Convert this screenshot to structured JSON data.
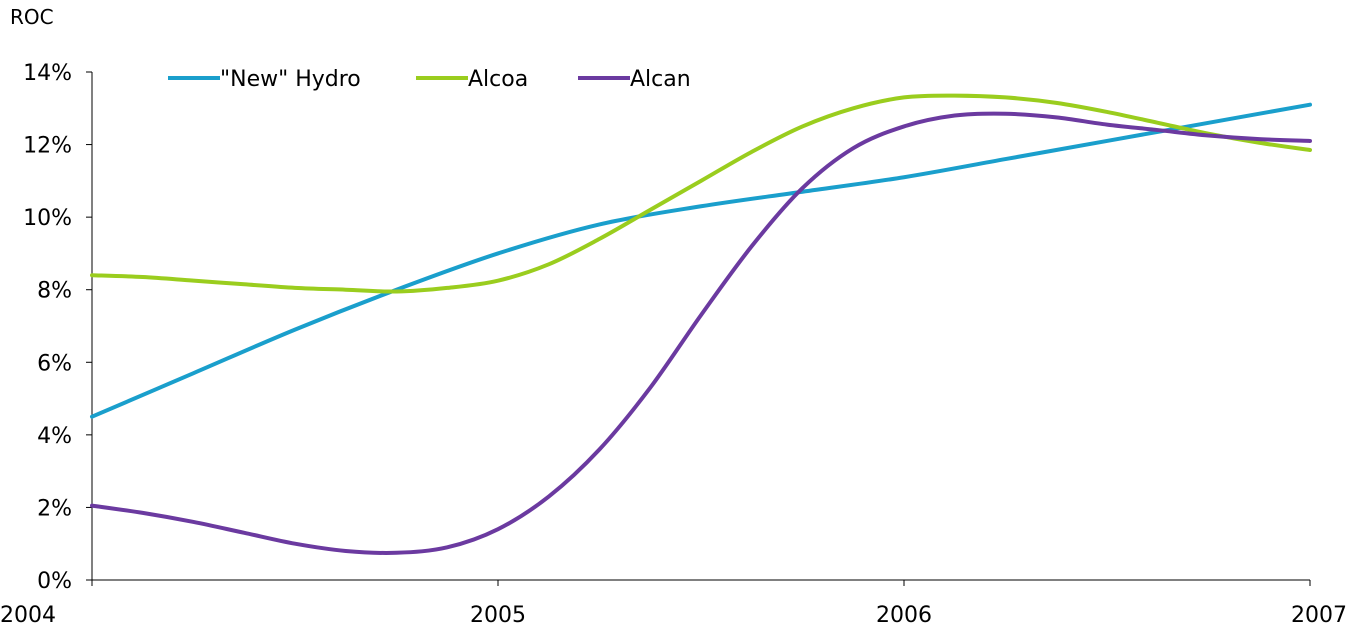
{
  "chart_data": {
    "type": "line",
    "title": "",
    "xlabel": "",
    "ylabel": "ROC",
    "xlim": [
      2004,
      2007
    ],
    "ylim": [
      0,
      14
    ],
    "x_ticks": [
      2004,
      2005,
      2006,
      2007
    ],
    "x_tick_labels": [
      "2004",
      "2005",
      "2006",
      "2007"
    ],
    "y_ticks": [
      0,
      2,
      4,
      6,
      8,
      10,
      12,
      14
    ],
    "y_tick_labels": [
      "0%",
      "2%",
      "4%",
      "6%",
      "8%",
      "10%",
      "12%",
      "14%"
    ],
    "grid": false,
    "legend_position": "top",
    "series": [
      {
        "name": "\"New\" Hydro",
        "color": "#1a9fcc",
        "x": [
          2004.0,
          2004.25,
          2004.5,
          2004.75,
          2005.0,
          2005.25,
          2005.5,
          2005.75,
          2006.0,
          2006.25,
          2006.5,
          2006.75,
          2007.0
        ],
        "values": [
          4.5,
          5.7,
          6.9,
          8.0,
          9.0,
          9.8,
          10.3,
          10.7,
          11.1,
          11.6,
          12.1,
          12.6,
          13.1
        ]
      },
      {
        "name": "Alcoa",
        "color": "#9acd1e",
        "x": [
          2004.0,
          2004.125,
          2004.25,
          2004.375,
          2004.5,
          2004.625,
          2004.75,
          2004.875,
          2005.0,
          2005.125,
          2005.25,
          2005.375,
          2005.5,
          2005.625,
          2005.75,
          2005.875,
          2006.0,
          2006.125,
          2006.25,
          2006.375,
          2006.5,
          2006.625,
          2006.75,
          2006.875,
          2007.0
        ],
        "values": [
          8.4,
          8.35,
          8.25,
          8.15,
          8.05,
          8.0,
          7.95,
          8.05,
          8.25,
          8.7,
          9.4,
          10.2,
          11.0,
          11.8,
          12.5,
          13.0,
          13.3,
          13.35,
          13.3,
          13.15,
          12.9,
          12.6,
          12.3,
          12.05,
          11.85
        ]
      },
      {
        "name": "Alcan",
        "color": "#6b3aa0",
        "x": [
          2004.0,
          2004.125,
          2004.25,
          2004.375,
          2004.5,
          2004.625,
          2004.75,
          2004.875,
          2005.0,
          2005.125,
          2005.25,
          2005.375,
          2005.5,
          2005.625,
          2005.75,
          2005.875,
          2006.0,
          2006.125,
          2006.25,
          2006.375,
          2006.5,
          2006.625,
          2006.75,
          2006.875,
          2007.0
        ],
        "values": [
          2.05,
          1.85,
          1.6,
          1.3,
          1.0,
          0.8,
          0.75,
          0.9,
          1.4,
          2.3,
          3.6,
          5.3,
          7.3,
          9.2,
          10.8,
          11.9,
          12.5,
          12.8,
          12.85,
          12.75,
          12.55,
          12.4,
          12.25,
          12.15,
          12.1
        ]
      }
    ]
  }
}
